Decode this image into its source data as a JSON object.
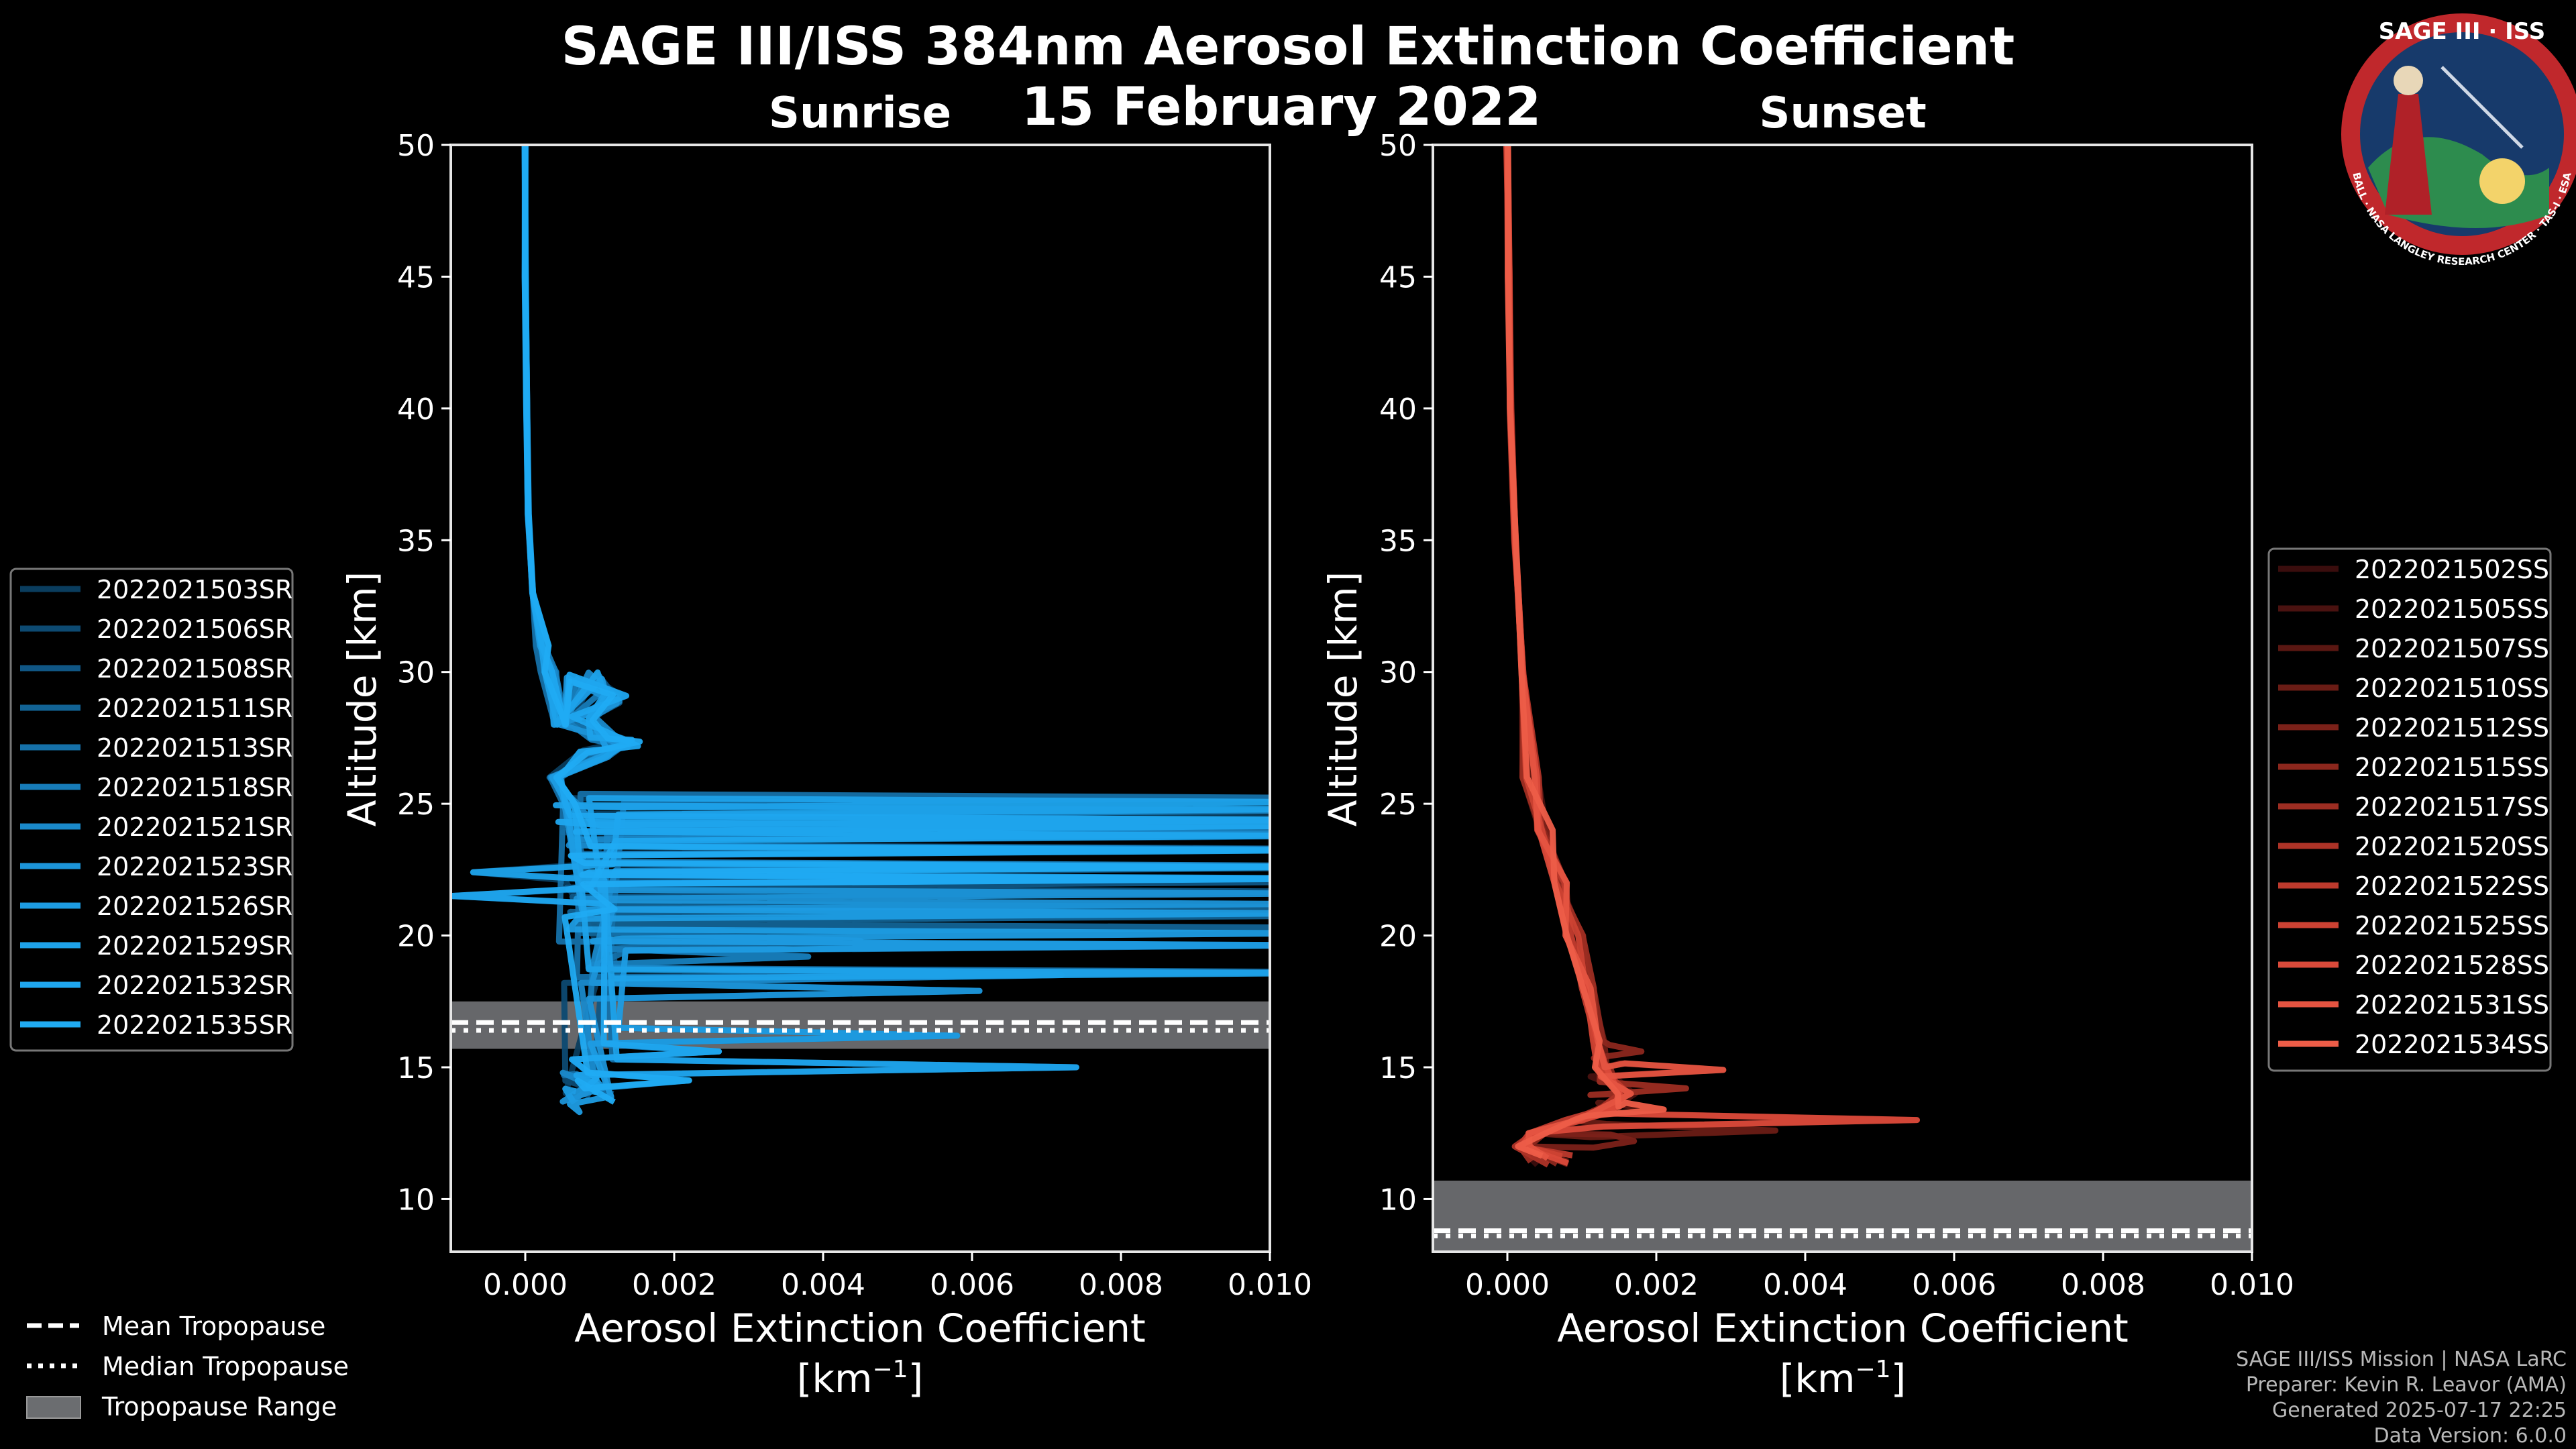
{
  "chart_data": {
    "type": "line",
    "title_line1": "SAGE III/ISS 384nm Aerosol Extinction Coefficient",
    "title_line2": "15 February 2022",
    "xlim": [
      -0.001,
      0.01
    ],
    "ylim": [
      8,
      50
    ],
    "xticks": [
      0.0,
      0.002,
      0.004,
      0.006,
      0.008,
      0.01
    ],
    "xtick_labels": [
      "0.000",
      "0.002",
      "0.004",
      "0.006",
      "0.008",
      "0.010"
    ],
    "yticks": [
      10,
      15,
      20,
      25,
      30,
      35,
      40,
      45,
      50
    ],
    "ytick_labels": [
      "10",
      "15",
      "20",
      "25",
      "30",
      "35",
      "40",
      "45",
      "50"
    ],
    "xlabel_line1": "Aerosol Extinction Coefficient",
    "xlabel_unit": "[km",
    "xlabel_unit_sup": "−1",
    "xlabel_unit_close": "]",
    "ylabel": "Altitude [km]",
    "panels": [
      {
        "subtitle": "Sunrise",
        "tropopause_range": [
          15.7,
          17.5
        ],
        "mean_tropopause": 16.7,
        "median_tropopause": 16.4,
        "series_names": [
          "2022021503SR",
          "2022021506SR",
          "2022021508SR",
          "2022021511SR",
          "2022021513SR",
          "2022021518SR",
          "2022021521SR",
          "2022021523SR",
          "2022021526SR",
          "2022021529SR",
          "2022021532SR",
          "2022021535SR"
        ],
        "series_colors": [
          "#0a3d5e",
          "#0d4a72",
          "#105684",
          "#126395",
          "#1570a8",
          "#177cb9",
          "#1a89ca",
          "#1c94d8",
          "#1d9ce3",
          "#1ea2ea",
          "#1fa7ef",
          "#20abf3"
        ],
        "profile_tail": [
          [
            0.0,
            50
          ],
          [
            0.0,
            45
          ],
          [
            2e-05,
            40
          ],
          [
            4e-05,
            36
          ],
          [
            0.0001,
            33
          ],
          [
            0.0002,
            31
          ],
          [
            0.0003,
            30
          ],
          [
            0.0005,
            28
          ]
        ],
        "profile_low": [
          [
            0.0004,
            26
          ],
          [
            0.0006,
            25
          ]
        ],
        "spike_layers": [
          25.2,
          24.8,
          24.4,
          24.1,
          23.7,
          23.2,
          22.6,
          22.1,
          21.6,
          21.1,
          20.7,
          20.2,
          19.7,
          18.7
        ],
        "short_spikes": [
          [
            22.4,
            -0.0007
          ],
          [
            21.5,
            -0.001
          ],
          [
            21.0,
            0.0012
          ],
          [
            20.4,
            0.0028
          ],
          [
            19.8,
            0.0045
          ],
          [
            19.2,
            0.0038
          ],
          [
            18.5,
            0.0072
          ],
          [
            17.9,
            0.0061
          ],
          [
            16.2,
            0.0058
          ],
          [
            15.0,
            0.0074
          ],
          [
            15.6,
            0.0026
          ],
          [
            14.5,
            0.0022
          ],
          [
            14.0,
            0.0008
          ],
          [
            13.6,
            0.0006
          ]
        ],
        "wiggle_points": [
          [
            0.0008,
            29.8
          ],
          [
            0.0012,
            29.0
          ],
          [
            0.0007,
            28.2
          ],
          [
            0.0011,
            27.6
          ],
          [
            0.0013,
            27.3
          ],
          [
            0.0009,
            26.9
          ]
        ]
      },
      {
        "subtitle": "Sunset",
        "tropopause_range": [
          8.0,
          10.7
        ],
        "mean_tropopause": 8.8,
        "median_tropopause": 8.6,
        "series_names": [
          "2022021502SS",
          "2022021505SS",
          "2022021507SS",
          "2022021510SS",
          "2022021512SS",
          "2022021515SS",
          "2022021517SS",
          "2022021520SS",
          "2022021522SS",
          "2022021525SS",
          "2022021528SS",
          "2022021531SS",
          "2022021534SS"
        ],
        "series_colors": [
          "#3a0d0d",
          "#4a1210",
          "#5a1712",
          "#6a1c15",
          "#7b2119",
          "#8c271d",
          "#9c2d22",
          "#ad3327",
          "#bd3a2d",
          "#cc4233",
          "#da4a3a",
          "#e55441",
          "#ed5d48"
        ],
        "profile_path": [
          [
            0.0,
            50
          ],
          [
            2e-05,
            45
          ],
          [
            4e-05,
            40
          ],
          [
            0.0001,
            35
          ],
          [
            0.0002,
            30
          ],
          [
            0.0003,
            26
          ],
          [
            0.0005,
            24
          ],
          [
            0.0007,
            22
          ],
          [
            0.0009,
            20
          ],
          [
            0.0011,
            18
          ],
          [
            0.0012,
            16
          ],
          [
            0.0013,
            15
          ],
          [
            0.0016,
            14
          ],
          [
            0.0014,
            13.5
          ],
          [
            0.0009,
            13
          ],
          [
            0.0004,
            12.5
          ],
          [
            0.0002,
            12
          ]
        ],
        "peaks": [
          [
            13.0,
            0.0055
          ],
          [
            14.9,
            0.0029
          ],
          [
            13.4,
            0.0021
          ],
          [
            12.6,
            0.0036
          ],
          [
            12.2,
            0.0017
          ],
          [
            15.6,
            0.0018
          ],
          [
            14.2,
            0.0024
          ],
          [
            12.0,
            -0.001
          ],
          [
            11.5,
            0.0008
          ],
          [
            11.2,
            0.0012
          ]
        ]
      }
    ]
  },
  "legend_bottom": {
    "mean": "Mean Tropopause",
    "median": "Median Tropopause",
    "range": "Tropopause Range"
  },
  "logo": {
    "title": "SAGE III · ISS",
    "ring_text": "BALL · NASA LANGLEY RESEARCH CENTER · TAS-I · ESA"
  },
  "credits": {
    "line1": "SAGE III/ISS Mission | NASA LaRC",
    "line2": "Preparer: Kevin R. Leavor (AMA)",
    "line3": "Generated 2025-07-17 22:25",
    "line4": "Data Version: 6.0.0"
  }
}
